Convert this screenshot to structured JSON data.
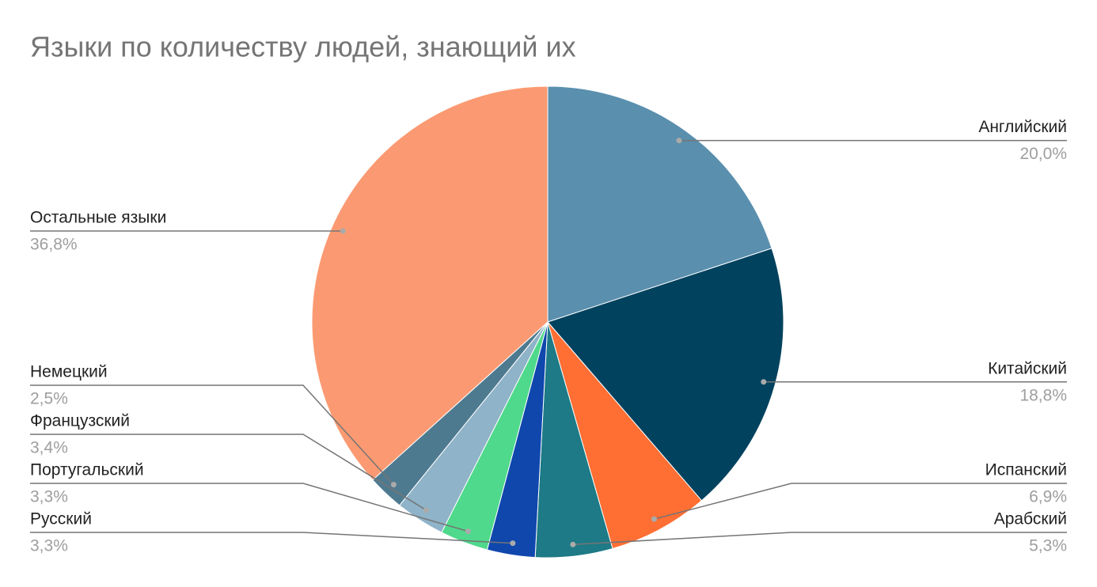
{
  "chart_data": {
    "type": "pie",
    "title": "Языки по количеству людей, знающий их",
    "categories": [
      "Английский",
      "Китайский",
      "Испанский",
      "Арабский",
      "Русский",
      "Португальский",
      "Французский",
      "Немецкий",
      "Остальные языки"
    ],
    "values": [
      20.0,
      18.8,
      6.9,
      5.3,
      3.3,
      3.3,
      3.4,
      2.5,
      36.8
    ],
    "value_labels": [
      "20,0%",
      "18,8%",
      "6,9%",
      "5,3%",
      "3,3%",
      "3,3%",
      "3,4%",
      "2,5%",
      "36,8%"
    ],
    "colors": [
      "#5a8fae",
      "#01425e",
      "#ff6e33",
      "#1d7a86",
      "#0f47ad",
      "#4fd98c",
      "#8fb3c8",
      "#4e7a90",
      "#fb9a72"
    ]
  }
}
